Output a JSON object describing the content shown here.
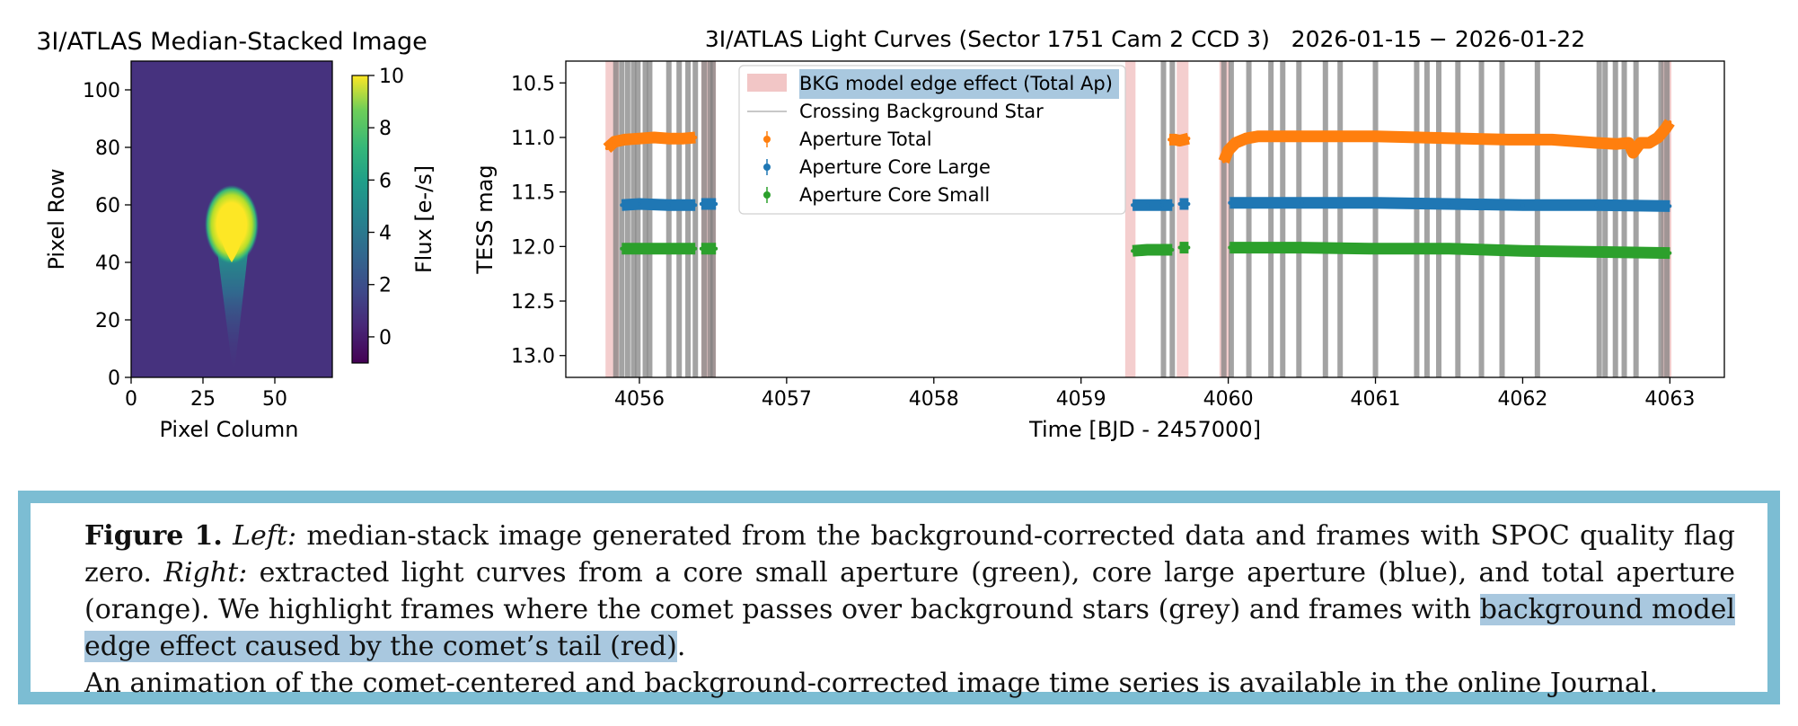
{
  "chart_data": [
    {
      "type": "heatmap",
      "title": "3I/ATLAS Median-Stacked Image",
      "xlabel": "Pixel Column",
      "ylabel": "Pixel Row",
      "xlim": [
        0,
        70
      ],
      "ylim": [
        0,
        110
      ],
      "xticks": [
        "0",
        "25",
        "50"
      ],
      "yticks": [
        "0",
        "20",
        "40",
        "60",
        "80",
        "100"
      ],
      "colorbar": {
        "label": "Flux [e-/s]",
        "range": [
          -1,
          10
        ],
        "ticks": [
          "0",
          "2",
          "4",
          "6",
          "8",
          "10"
        ]
      },
      "source": {
        "col": 35,
        "row": 50,
        "peak_flux": 10,
        "tail_direction": "down"
      }
    },
    {
      "type": "scatter",
      "title": "3I/ATLAS Light Curves (Sector 1751 Cam 2 CCD 3)   2026-01-15 − 2026-01-22",
      "xlabel": "Time [BJD - 2457000]",
      "ylabel": "TESS mag",
      "xlim": [
        4055.5,
        4063.37
      ],
      "ylim": [
        13.2,
        10.3
      ],
      "y_inverted": true,
      "xticks": [
        "4056",
        "4057",
        "4058",
        "4059",
        "4060",
        "4061",
        "4062",
        "4063"
      ],
      "yticks": [
        "10.5",
        "11.0",
        "11.5",
        "12.0",
        "12.5",
        "13.0"
      ],
      "legend": {
        "position": "top-left",
        "entries": [
          {
            "label": "BKG model edge effect (Total Ap)",
            "color": "#f2c6c6",
            "kind": "patch",
            "highlighted": true
          },
          {
            "label": "Crossing Background Star",
            "color": "#c8c8c8",
            "kind": "line"
          },
          {
            "label": "Aperture Total",
            "color": "#ff7f0e",
            "kind": "errorbar"
          },
          {
            "label": "Aperture Core Large",
            "color": "#1f77b4",
            "kind": "errorbar"
          },
          {
            "label": "Aperture Core Small",
            "color": "#2ca02c",
            "kind": "errorbar"
          }
        ]
      },
      "edge_effect_intervals": [
        [
          4055.77,
          4055.86
        ],
        [
          4056.42,
          4056.52
        ],
        [
          4059.3,
          4059.37
        ],
        [
          4059.65,
          4059.73
        ],
        [
          4059.94,
          4060.01
        ],
        [
          4062.94,
          4063.01
        ]
      ],
      "background_star_crossings": [
        4055.84,
        4055.88,
        4055.92,
        4055.96,
        4055.99,
        4056.04,
        4056.07,
        4056.2,
        4056.27,
        4056.33,
        4056.38,
        4056.44,
        4056.48,
        4056.5,
        4059.56,
        4059.62,
        4059.97,
        4060.02,
        4060.14,
        4060.29,
        4060.37,
        4060.48,
        4060.66,
        4060.76,
        4061.0,
        4061.28,
        4061.35,
        4061.43,
        4061.56,
        4061.72,
        4061.86,
        4062.1,
        4062.52,
        4062.56,
        4062.63,
        4062.69,
        4062.77,
        4062.94,
        4062.98
      ],
      "series": [
        {
          "name": "Aperture Total",
          "color": "#ff7f0e",
          "segments": [
            {
              "x": [
                4055.78,
                4055.83,
                4055.9,
                4056.0,
                4056.1,
                4056.2,
                4056.3,
                4056.38
              ],
              "y": [
                11.1,
                11.04,
                11.02,
                11.01,
                11.0,
                11.01,
                11.01,
                11.0
              ]
            },
            {
              "x": [
                4059.6,
                4059.64,
                4059.67,
                4059.7,
                4059.73
              ],
              "y": [
                11.02,
                11.02,
                11.03,
                11.02,
                11.01
              ]
            },
            {
              "x": [
                4059.97,
                4060.0,
                4060.05,
                4060.12,
                4060.2,
                4060.4,
                4060.7,
                4061.0,
                4061.3,
                4061.6,
                4061.9,
                4062.2,
                4062.5,
                4062.64,
                4062.72,
                4062.75,
                4062.8,
                4062.86,
                4062.92,
                4062.97,
                4063.0
              ],
              "y": [
                11.22,
                11.12,
                11.05,
                11.01,
                10.99,
                10.99,
                10.99,
                10.99,
                11.0,
                11.01,
                11.02,
                11.02,
                11.05,
                11.06,
                11.05,
                11.14,
                11.05,
                11.05,
                11.0,
                10.92,
                10.86
              ]
            }
          ]
        },
        {
          "name": "Aperture Core Large",
          "color": "#1f77b4",
          "segments": [
            {
              "x": [
                4055.88,
                4056.0,
                4056.2,
                4056.38
              ],
              "y": [
                11.62,
                11.61,
                11.62,
                11.62
              ]
            },
            {
              "x": [
                4056.42,
                4056.52
              ],
              "y": [
                11.61,
                11.61
              ]
            },
            {
              "x": [
                4059.35,
                4059.45,
                4059.55,
                4059.62
              ],
              "y": [
                11.62,
                11.62,
                11.62,
                11.62
              ]
            },
            {
              "x": [
                4059.67,
                4059.73
              ],
              "y": [
                11.61,
                11.61
              ]
            },
            {
              "x": [
                4060.01,
                4060.5,
                4061.0,
                4061.5,
                4062.0,
                4062.5,
                4063.0
              ],
              "y": [
                11.6,
                11.6,
                11.6,
                11.61,
                11.62,
                11.62,
                11.63
              ]
            }
          ]
        },
        {
          "name": "Aperture Core Small",
          "color": "#2ca02c",
          "segments": [
            {
              "x": [
                4055.88,
                4056.0,
                4056.2,
                4056.38
              ],
              "y": [
                12.02,
                12.02,
                12.02,
                12.02
              ]
            },
            {
              "x": [
                4056.42,
                4056.52
              ],
              "y": [
                12.02,
                12.02
              ]
            },
            {
              "x": [
                4059.35,
                4059.45,
                4059.55,
                4059.62
              ],
              "y": [
                12.04,
                12.03,
                12.03,
                12.03
              ]
            },
            {
              "x": [
                4059.67,
                4059.73
              ],
              "y": [
                12.01,
                12.01
              ]
            },
            {
              "x": [
                4060.01,
                4060.5,
                4061.0,
                4061.5,
                4062.0,
                4062.5,
                4063.0
              ],
              "y": [
                12.01,
                12.01,
                12.02,
                12.02,
                12.04,
                12.05,
                12.06
              ]
            }
          ]
        }
      ]
    }
  ],
  "caption": {
    "label": "Figure 1.",
    "left_label": "Left:",
    "left_text": "median-stack image generated from the background-corrected data and frames with SPOC quality flag zero.",
    "right_label": "Right:",
    "right_text": "extracted light curves from a core small aperture (green), core large aperture (blue), and total aperture (orange). We highlight frames where the comet passes over background stars (grey) and frames with",
    "highlight_text": "background model edge effect caused by the comet’s tail (red)",
    "right_end": ".",
    "animation_note": "An animation of the comet-centered and background-corrected image time series is available in the online Journal.",
    "highlight_color": "#a9c8df",
    "border_color": "#7cbdd3"
  }
}
